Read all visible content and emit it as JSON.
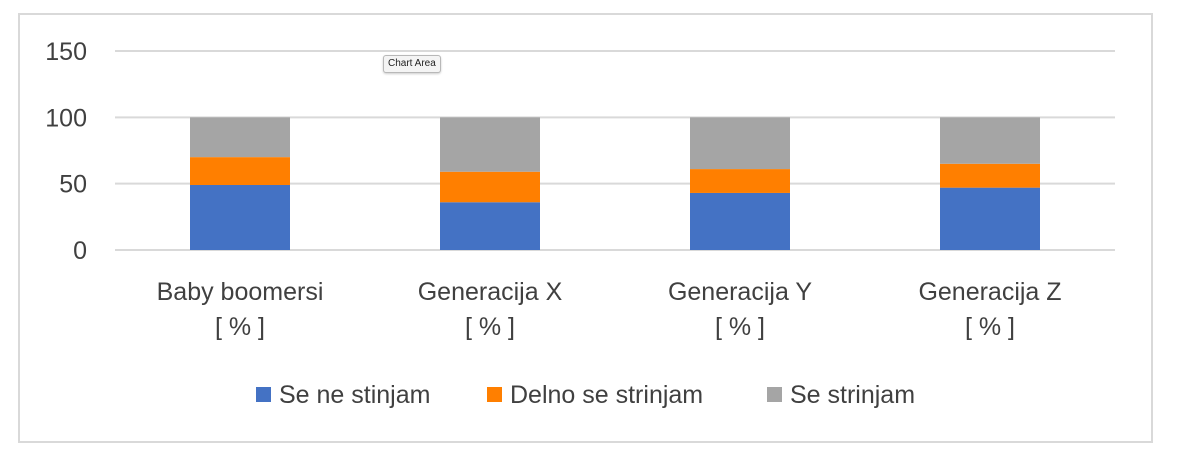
{
  "tooltip": {
    "text": "Chart Area"
  },
  "chart_data": {
    "type": "bar",
    "stacked": true,
    "categories": [
      [
        "Baby boomersi",
        "[ % ]"
      ],
      [
        "Generacija X",
        "[ % ]"
      ],
      [
        "Generacija Y",
        "[ % ]"
      ],
      [
        "Generacija Z",
        "[ % ]"
      ]
    ],
    "series": [
      {
        "name": "Se ne stinjam",
        "color": "#4472c4",
        "values": [
          49,
          36,
          43,
          47
        ]
      },
      {
        "name": "Delno se strinjam",
        "color": "#ff7f00",
        "values": [
          21,
          23,
          18,
          18
        ]
      },
      {
        "name": "Se strinjam",
        "color": "#a5a5a5",
        "values": [
          30,
          41,
          39,
          35
        ]
      }
    ],
    "yticks": [
      0,
      50,
      100,
      150
    ],
    "ylim": [
      0,
      150
    ],
    "grid": true,
    "legend": "bottom"
  }
}
